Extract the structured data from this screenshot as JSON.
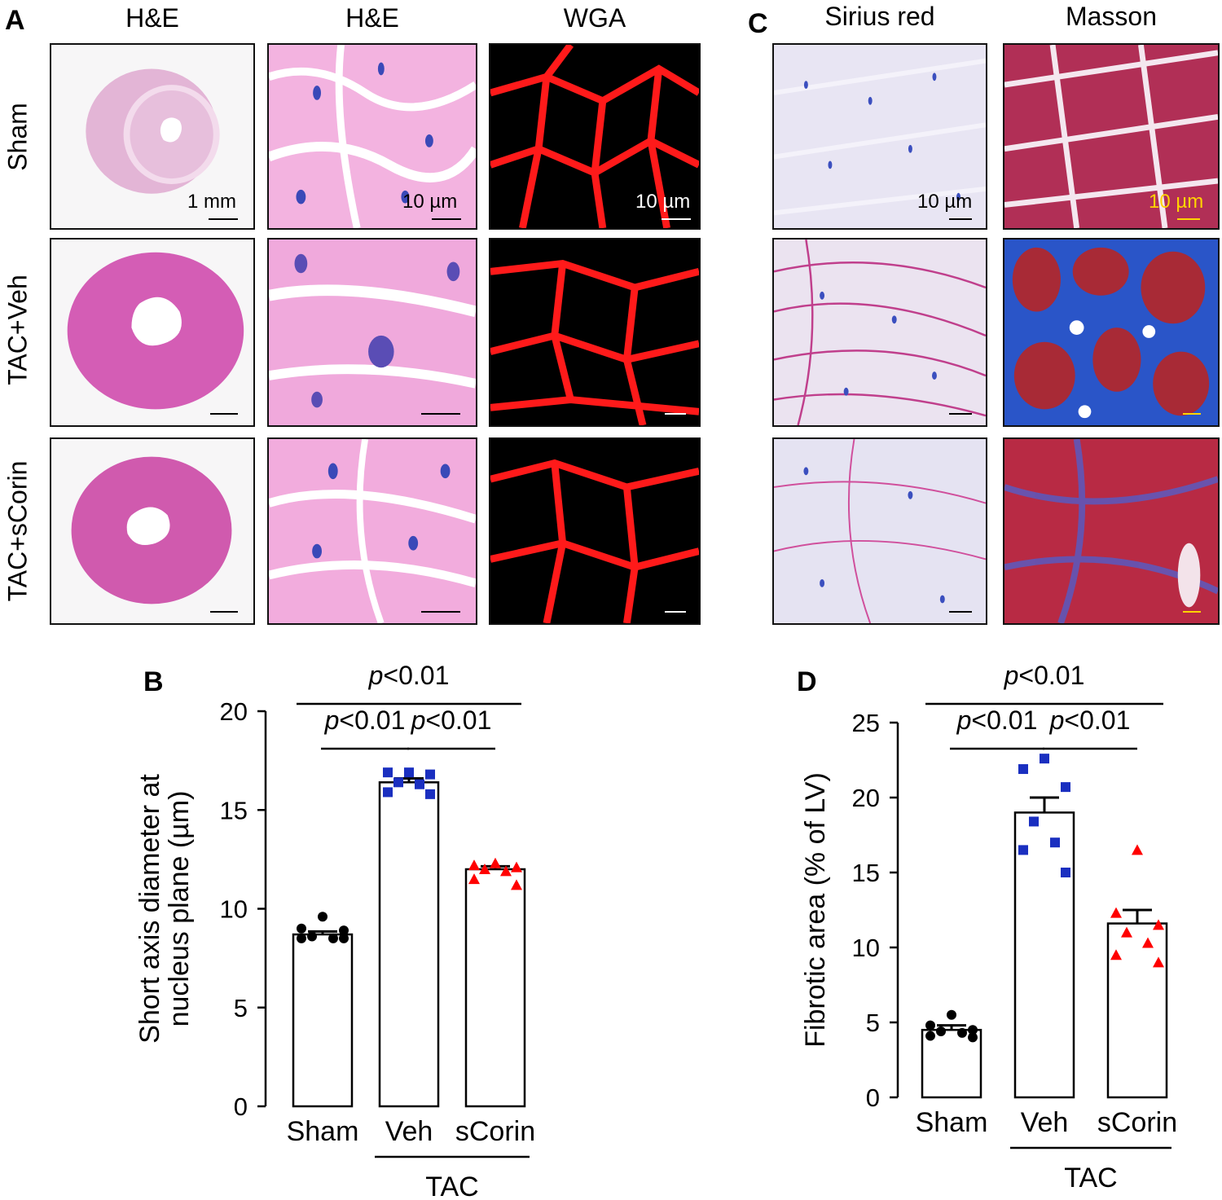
{
  "panelA": {
    "letter": "A",
    "columns": [
      "H&E",
      "H&E",
      "WGA"
    ],
    "rows": [
      "Sham",
      "TAC+Veh",
      "TAC+sCorin"
    ],
    "scalebars": [
      "1 mm",
      "10 µm",
      "10 µm"
    ]
  },
  "panelC": {
    "letter": "C",
    "columns": [
      "Sirius red",
      "Masson"
    ],
    "scalebars": [
      "10 µm",
      "10 µm"
    ]
  },
  "colors": {
    "he_pink": "#f0a9dc",
    "he_heart": "#cf4aa6",
    "wga_red": "#ff1a1a",
    "sirius_bg": "#e6e2f2",
    "masson_red": "#b02a4a",
    "masson_blue": "#2a55c8",
    "sham_marker": "#000000",
    "veh_marker": "#1a2fc0",
    "scorin_marker": "#ff0000"
  },
  "chart_data": [
    {
      "panel_letter": "B",
      "type": "bar",
      "categories": [
        "Sham",
        "Veh",
        "sCorin"
      ],
      "group_label": "TAC",
      "ylabel": "Short axis diameter at nucleus plane (µm)",
      "ylabel_lines": [
        "Short axis diameter at",
        "nucleus plane (µm)"
      ],
      "ylim": [
        0,
        20
      ],
      "yticks": [
        0,
        5,
        10,
        15,
        20
      ],
      "means": [
        8.7,
        16.4,
        12.0
      ],
      "sem": [
        0.15,
        0.2,
        0.15
      ],
      "points": [
        [
          9.6,
          9.0,
          8.9,
          8.6,
          8.5,
          8.5,
          8.5
        ],
        [
          16.9,
          16.9,
          16.8,
          16.4,
          16.3,
          15.9,
          15.8
        ],
        [
          12.3,
          12.2,
          12.1,
          12.0,
          11.9,
          11.5,
          11.2
        ]
      ],
      "markers": [
        "circle",
        "square",
        "triangle"
      ],
      "comparisons": [
        {
          "from": 0,
          "to": 1,
          "label": "p<0.01"
        },
        {
          "from": 1,
          "to": 2,
          "label": "p<0.01"
        },
        {
          "from": 0,
          "to": 2,
          "label": "p<0.01"
        }
      ]
    },
    {
      "panel_letter": "D",
      "type": "bar",
      "categories": [
        "Sham",
        "Veh",
        "sCorin"
      ],
      "group_label": "TAC",
      "ylabel": "Fibrotic area (% of LV)",
      "ylabel_lines": [
        "Fibrotic area (% of LV)"
      ],
      "ylim": [
        0,
        25
      ],
      "yticks": [
        0,
        5,
        10,
        15,
        20,
        25
      ],
      "means": [
        4.5,
        19.0,
        11.6
      ],
      "sem": [
        0.3,
        1.0,
        0.9
      ],
      "points": [
        [
          5.5,
          4.8,
          4.5,
          4.4,
          4.3,
          4.1,
          4.0
        ],
        [
          22.6,
          21.9,
          20.7,
          18.4,
          17.0,
          16.5,
          15.0
        ],
        [
          16.5,
          12.3,
          11.5,
          11.0,
          10.3,
          9.5,
          9.0
        ]
      ],
      "markers": [
        "circle",
        "square",
        "triangle"
      ],
      "comparisons": [
        {
          "from": 0,
          "to": 1,
          "label": "p<0.01"
        },
        {
          "from": 1,
          "to": 2,
          "label": "p<0.01"
        },
        {
          "from": 0,
          "to": 2,
          "label": "p<0.01"
        }
      ]
    }
  ]
}
